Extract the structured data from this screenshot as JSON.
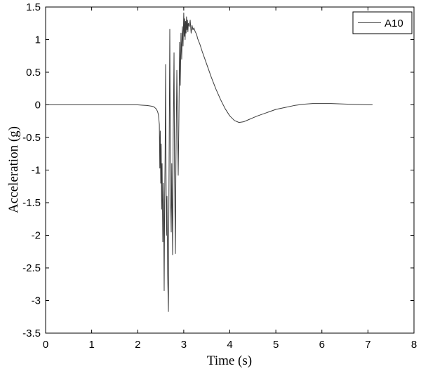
{
  "chart_data": {
    "type": "line",
    "xlabel": "Time (s)",
    "ylabel": "Acceleration (g)",
    "xlim": [
      0,
      8
    ],
    "ylim": [
      -3.5,
      1.5
    ],
    "xticks": [
      "0",
      "1",
      "2",
      "3",
      "4",
      "5",
      "6",
      "7",
      "8"
    ],
    "yticks": [
      "1.5",
      "1",
      "0.5",
      "0",
      "-0.5",
      "-1",
      "-1.5",
      "-2",
      "-2.5",
      "-3",
      "-3.5"
    ],
    "grid": false,
    "legend": "top-right",
    "series": [
      {
        "name": "A10",
        "color": "#3a3a3a",
        "x": [
          0,
          0.5,
          1.0,
          1.5,
          2.0,
          2.1,
          2.2,
          2.3,
          2.35,
          2.4,
          2.43,
          2.45,
          2.47,
          2.48,
          2.49,
          2.5,
          2.51,
          2.52,
          2.53,
          2.545,
          2.555,
          2.565,
          2.575,
          2.585,
          2.595,
          2.606,
          2.615,
          2.625,
          2.636,
          2.65,
          2.667,
          2.675,
          2.685,
          2.697,
          2.705,
          2.715,
          2.728,
          2.74,
          2.758,
          2.77,
          2.789,
          2.8,
          2.819,
          2.83,
          2.85,
          2.865,
          2.88,
          2.895,
          2.91,
          2.925,
          2.94,
          2.955,
          2.97,
          2.985,
          3.0,
          3.01,
          3.02,
          3.03,
          3.04,
          3.05,
          3.06,
          3.07,
          3.08,
          3.09,
          3.1,
          3.12,
          3.14,
          3.16,
          3.18,
          3.2,
          3.22,
          3.25,
          3.28,
          3.3,
          3.35,
          3.4,
          3.45,
          3.5,
          3.6,
          3.7,
          3.8,
          3.9,
          4.0,
          4.1,
          4.2,
          4.3,
          4.4,
          4.5,
          4.6,
          4.8,
          5.0,
          5.2,
          5.4,
          5.6,
          5.8,
          6.0,
          6.2,
          6.4,
          6.6,
          6.8,
          7.0,
          7.1
        ],
        "y": [
          0,
          0,
          0,
          0,
          0,
          -0.005,
          -0.01,
          -0.02,
          -0.03,
          -0.06,
          -0.1,
          -0.15,
          -0.3,
          -0.97,
          -0.4,
          -1.2,
          -0.6,
          -1.6,
          -0.9,
          -2.1,
          -1.2,
          -1.8,
          -2.85,
          -1.5,
          -0.8,
          0.62,
          -1.0,
          -2.0,
          -1.4,
          -2.6,
          -3.17,
          -1.8,
          -0.5,
          1.16,
          -0.2,
          -1.5,
          -1.95,
          -0.9,
          -2.3,
          -0.6,
          0.8,
          -1.0,
          -2.28,
          -0.9,
          0.53,
          -0.3,
          -1.08,
          -0.2,
          0.96,
          0.3,
          1.1,
          0.7,
          1.2,
          0.9,
          1.41,
          1.05,
          1.32,
          1.0,
          1.28,
          1.1,
          1.35,
          1.15,
          1.3,
          1.12,
          1.25,
          1.2,
          1.3,
          1.1,
          1.22,
          1.15,
          1.18,
          1.12,
          1.08,
          1.02,
          0.93,
          0.82,
          0.72,
          0.62,
          0.42,
          0.24,
          0.08,
          -0.06,
          -0.17,
          -0.24,
          -0.27,
          -0.26,
          -0.23,
          -0.2,
          -0.17,
          -0.12,
          -0.07,
          -0.04,
          -0.01,
          0.01,
          0.02,
          0.02,
          0.02,
          0.015,
          0.01,
          0.005,
          0.0,
          0.0
        ]
      }
    ]
  }
}
